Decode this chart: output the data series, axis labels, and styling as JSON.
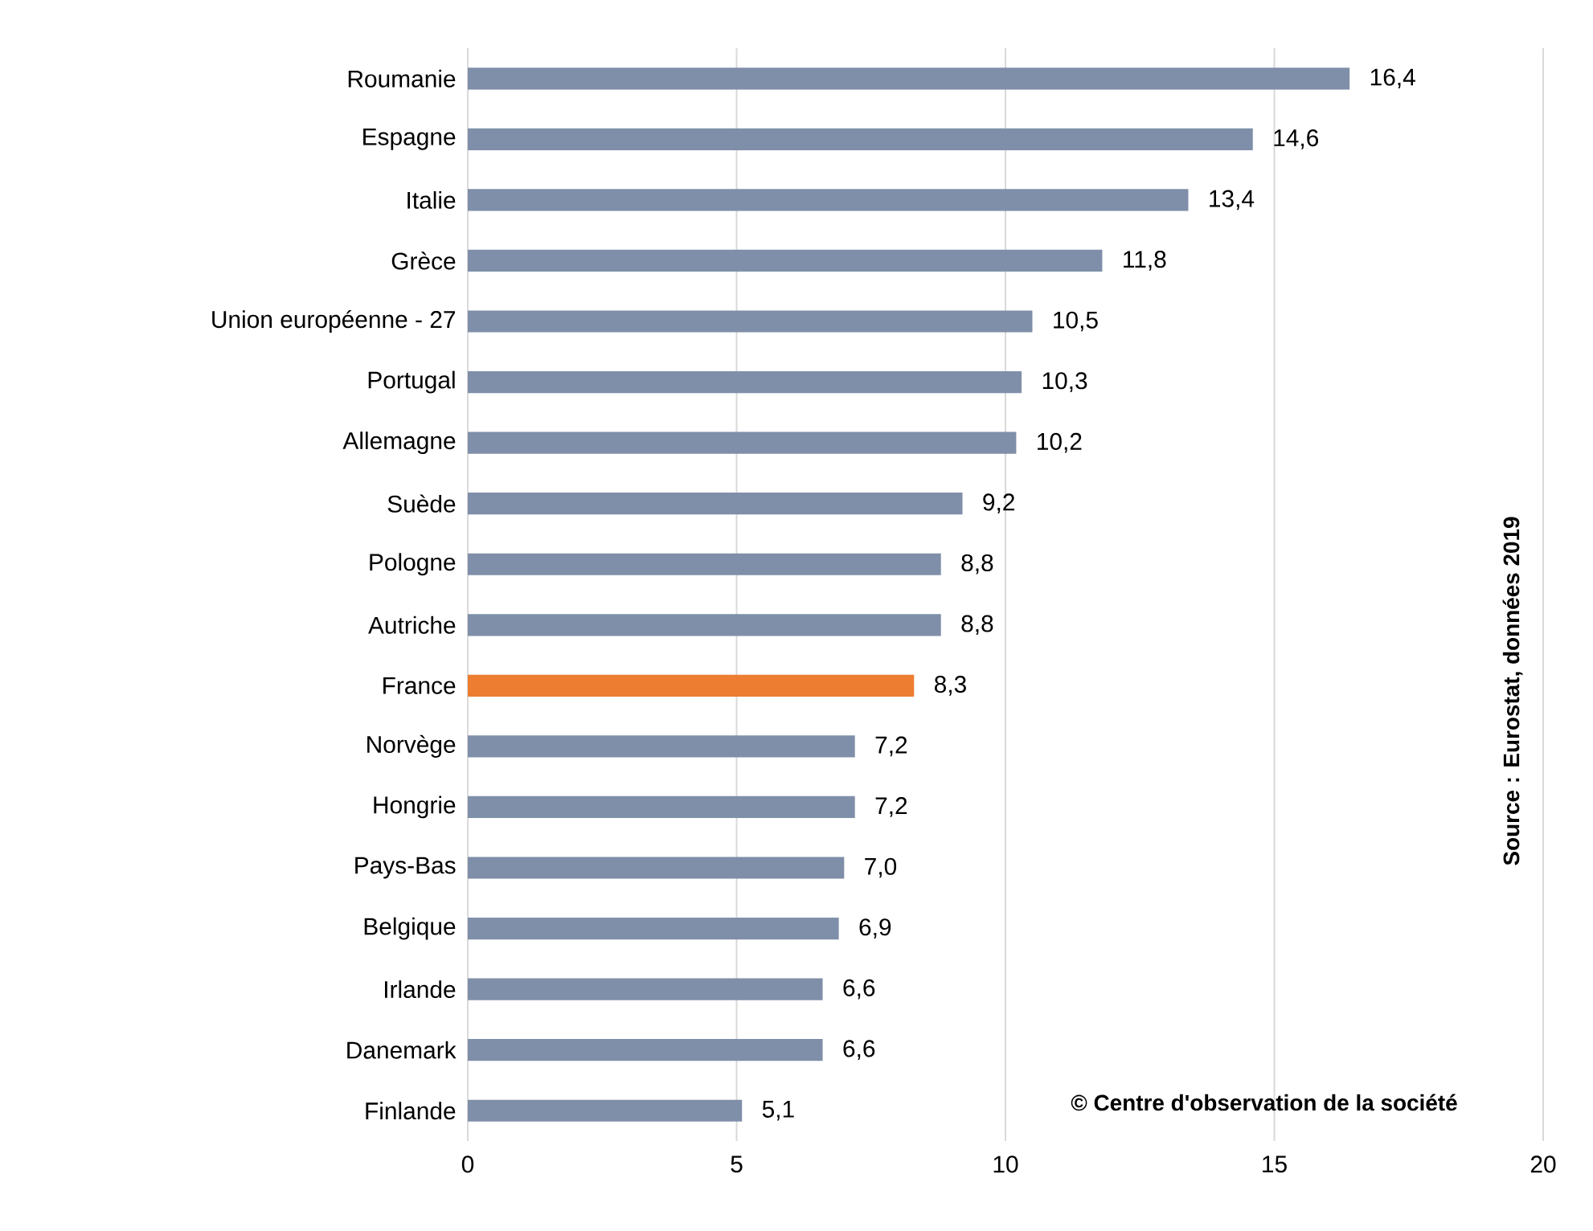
{
  "chart_data": {
    "type": "bar",
    "orientation": "horizontal",
    "categories": [
      "Roumanie",
      "Espagne",
      "Italie",
      "Grèce",
      "Union européenne - 27",
      "Portugal",
      "Allemagne",
      "Suède",
      "Pologne",
      "Autriche",
      "France",
      "Norvège",
      "Hongrie",
      "Pays-Bas",
      "Belgique",
      "Irlande",
      "Danemark",
      "Finlande"
    ],
    "values": [
      16.4,
      14.6,
      13.4,
      11.8,
      10.5,
      10.3,
      10.2,
      9.2,
      8.8,
      8.8,
      8.3,
      7.2,
      7.2,
      7.0,
      6.9,
      6.6,
      6.6,
      5.1
    ],
    "value_labels": [
      "16,4",
      "14,6",
      "13,4",
      "11,8",
      "10,5",
      "10,3",
      "10,2",
      "9,2",
      "8,8",
      "8,8",
      "8,3",
      "7,2",
      "7,2",
      "7,0",
      "6,9",
      "6,6",
      "6,6",
      "5,1"
    ],
    "colors": [
      "#7f8fa9",
      "#7f8fa9",
      "#7f8fa9",
      "#7f8fa9",
      "#7f8fa9",
      "#7f8fa9",
      "#7f8fa9",
      "#7f8fa9",
      "#7f8fa9",
      "#7f8fa9",
      "#ed7d31",
      "#7f8fa9",
      "#7f8fa9",
      "#7f8fa9",
      "#7f8fa9",
      "#7f8fa9",
      "#7f8fa9",
      "#7f8fa9"
    ],
    "xlim": [
      0,
      20
    ],
    "xticks": [
      0,
      5,
      10,
      15,
      20
    ],
    "grid": "x",
    "annotations": [
      "Source : Eurostat, données 2019",
      "© Centre d'observation de la société"
    ]
  }
}
